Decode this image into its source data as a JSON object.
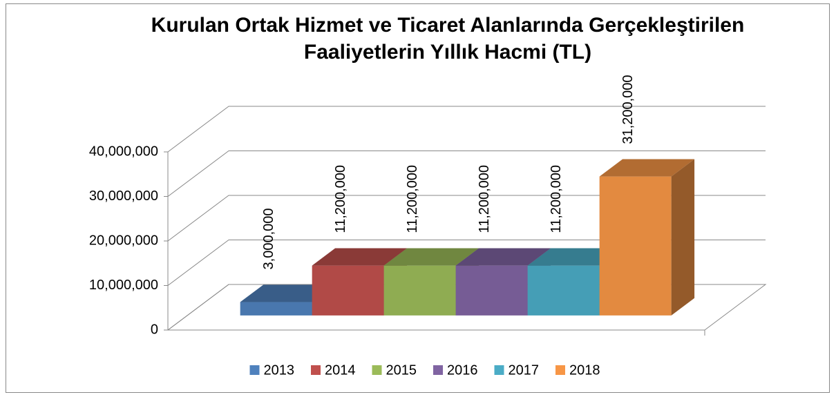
{
  "chart_data": {
    "type": "bar3d",
    "title": [
      "Kurulan Ortak Hizmet ve Ticaret Alanlarında Gerçekleştirilen",
      "Faaliyetlerin Yıllık Hacmi (TL)"
    ],
    "series": [
      {
        "name": "2013",
        "color": "#4f81bd",
        "values": [
          3000000
        ],
        "value_labels": [
          "3,000,000"
        ]
      },
      {
        "name": "2014",
        "color": "#c0504d",
        "values": [
          11200000
        ],
        "value_labels": [
          "11,200,000"
        ]
      },
      {
        "name": "2015",
        "color": "#9bbb59",
        "values": [
          11200000
        ],
        "value_labels": [
          "11,200,000"
        ]
      },
      {
        "name": "2016",
        "color": "#8064a2",
        "values": [
          11200000
        ],
        "value_labels": [
          "11,200,000"
        ]
      },
      {
        "name": "2017",
        "color": "#4bacc6",
        "values": [
          11200000
        ],
        "value_labels": [
          "11,200,000"
        ]
      },
      {
        "name": "2018",
        "color": "#f79646",
        "values": [
          31200000
        ],
        "value_labels": [
          "31,200,000"
        ]
      }
    ],
    "ylim": [
      0,
      40000000
    ],
    "yticks": [
      0,
      {
        "value": 10000000,
        "label": "10,000,000"
      },
      {
        "value": 20000000,
        "label": "20,000,000"
      },
      {
        "value": 30000000,
        "label": "30,000,000"
      },
      {
        "value": 40000000,
        "label": "40,000,000"
      }
    ],
    "grid": true,
    "legend": "bottom"
  }
}
